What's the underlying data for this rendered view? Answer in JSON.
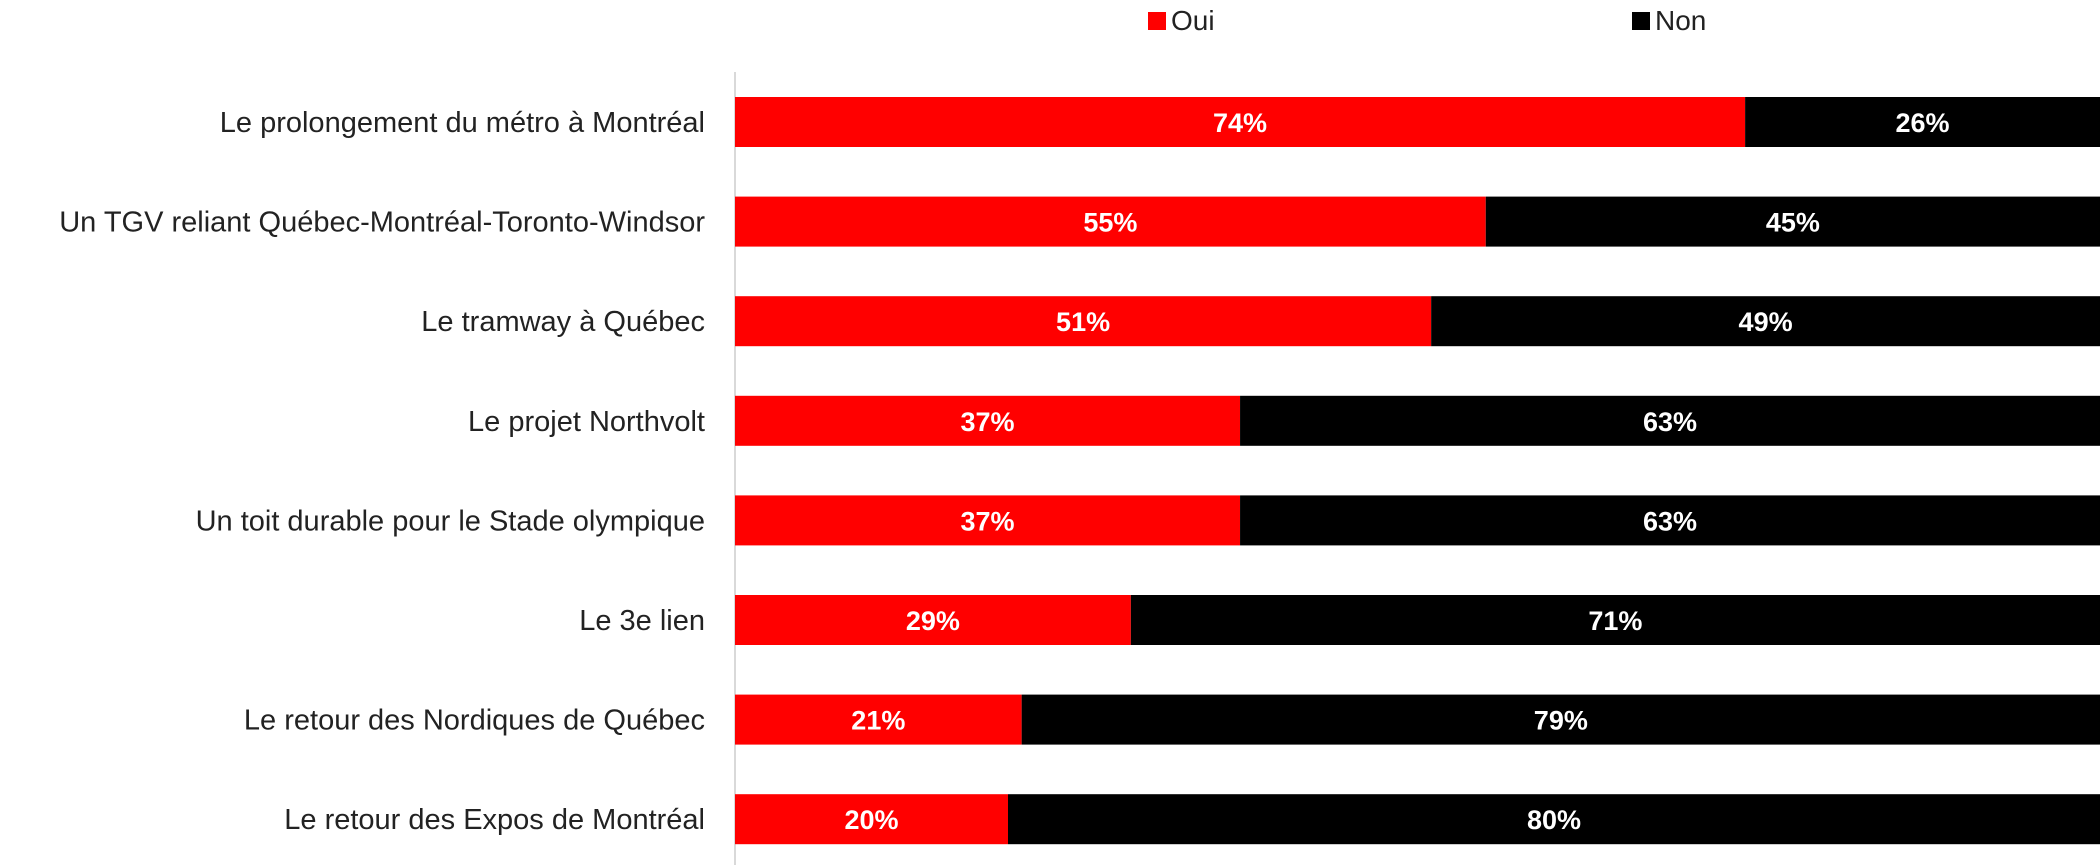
{
  "chart_data": {
    "type": "bar",
    "orientation": "horizontal",
    "stacked": true,
    "percent_stacked": true,
    "categories": [
      "Le prolongement du métro à Montréal",
      "Un TGV reliant Québec-Montréal-Toronto-Windsor",
      "Le tramway à Québec",
      "Le projet Northvolt",
      "Un toit durable pour le Stade olympique",
      "Le 3e lien",
      "Le retour des Nordiques de Québec",
      "Le retour des Expos de Montréal"
    ],
    "series": [
      {
        "name": "Oui",
        "color": "#ff0000",
        "values": [
          74,
          55,
          51,
          37,
          37,
          29,
          21,
          20
        ],
        "labels": [
          "74%",
          "55%",
          "51%",
          "37%",
          "37%",
          "29%",
          "21%",
          "20%"
        ]
      },
      {
        "name": "Non",
        "color": "#000000",
        "values": [
          26,
          45,
          49,
          63,
          63,
          71,
          79,
          80
        ],
        "labels": [
          "26%",
          "45%",
          "49%",
          "63%",
          "63%",
          "71%",
          "79%",
          "80%"
        ]
      }
    ],
    "title": "",
    "xlabel": "",
    "ylabel": "",
    "xlim": [
      0,
      100
    ],
    "grid": false,
    "legend": "top"
  }
}
